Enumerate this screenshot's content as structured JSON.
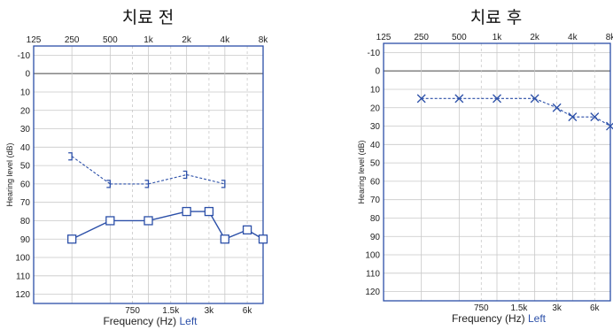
{
  "chart_data": [
    {
      "type": "line",
      "title": "치료 전",
      "xlabel": "Frequency (Hz)",
      "xlabel_ear": "Left",
      "ylabel": "Hearing level (dB)",
      "x_scale": "log",
      "top_ticks": [
        "125",
        "250",
        "500",
        "1k",
        "2k",
        "4k",
        "8k"
      ],
      "top_tick_values": [
        125,
        250,
        500,
        1000,
        2000,
        4000,
        8000
      ],
      "bottom_ticks": [
        "750",
        "1.5k",
        "3k",
        "6k"
      ],
      "bottom_tick_values": [
        750,
        1500,
        3000,
        6000
      ],
      "y_ticks": [
        -10,
        0,
        10,
        20,
        30,
        40,
        50,
        60,
        70,
        80,
        90,
        100,
        110,
        120
      ],
      "ylim": [
        -15,
        125
      ],
      "xlim": [
        125,
        8000
      ],
      "grid": true,
      "reference_line_db": 0,
      "series": [
        {
          "marker": "bracket",
          "style": "dashed",
          "color": "#2b4fa8",
          "x": [
            250,
            500,
            1000,
            2000,
            4000
          ],
          "y": [
            45,
            60,
            60,
            55,
            60
          ]
        },
        {
          "marker": "square",
          "style": "solid",
          "color": "#2b4fa8",
          "x": [
            250,
            500,
            1000,
            2000,
            3000,
            4000,
            6000,
            8000
          ],
          "y": [
            90,
            80,
            80,
            75,
            75,
            90,
            85,
            90
          ]
        }
      ]
    },
    {
      "type": "line",
      "title": "치료 후",
      "xlabel": "Frequency (Hz)",
      "xlabel_ear": "Left",
      "ylabel": "Hearing level (dB)",
      "x_scale": "log",
      "top_ticks": [
        "125",
        "250",
        "500",
        "1k",
        "2k",
        "4k",
        "8k"
      ],
      "top_tick_values": [
        125,
        250,
        500,
        1000,
        2000,
        4000,
        8000
      ],
      "bottom_ticks": [
        "750",
        "1.5k",
        "3k",
        "6k"
      ],
      "bottom_tick_values": [
        750,
        1500,
        3000,
        6000
      ],
      "y_ticks": [
        -10,
        0,
        10,
        20,
        30,
        40,
        50,
        60,
        70,
        80,
        90,
        100,
        110,
        120
      ],
      "ylim": [
        -15,
        125
      ],
      "xlim": [
        125,
        8000
      ],
      "grid": true,
      "reference_line_db": 0,
      "series": [
        {
          "marker": "x",
          "style": "dashed",
          "color": "#2b4fa8",
          "x": [
            250,
            500,
            1000,
            2000,
            3000,
            4000,
            6000,
            8000
          ],
          "y": [
            15,
            15,
            15,
            15,
            20,
            25,
            25,
            30
          ]
        }
      ]
    }
  ],
  "colors": {
    "frame": "#2b4fa8",
    "grid": "#c8c8c8",
    "zero_line": "#777777",
    "ear_label": "#2b4fa8"
  }
}
